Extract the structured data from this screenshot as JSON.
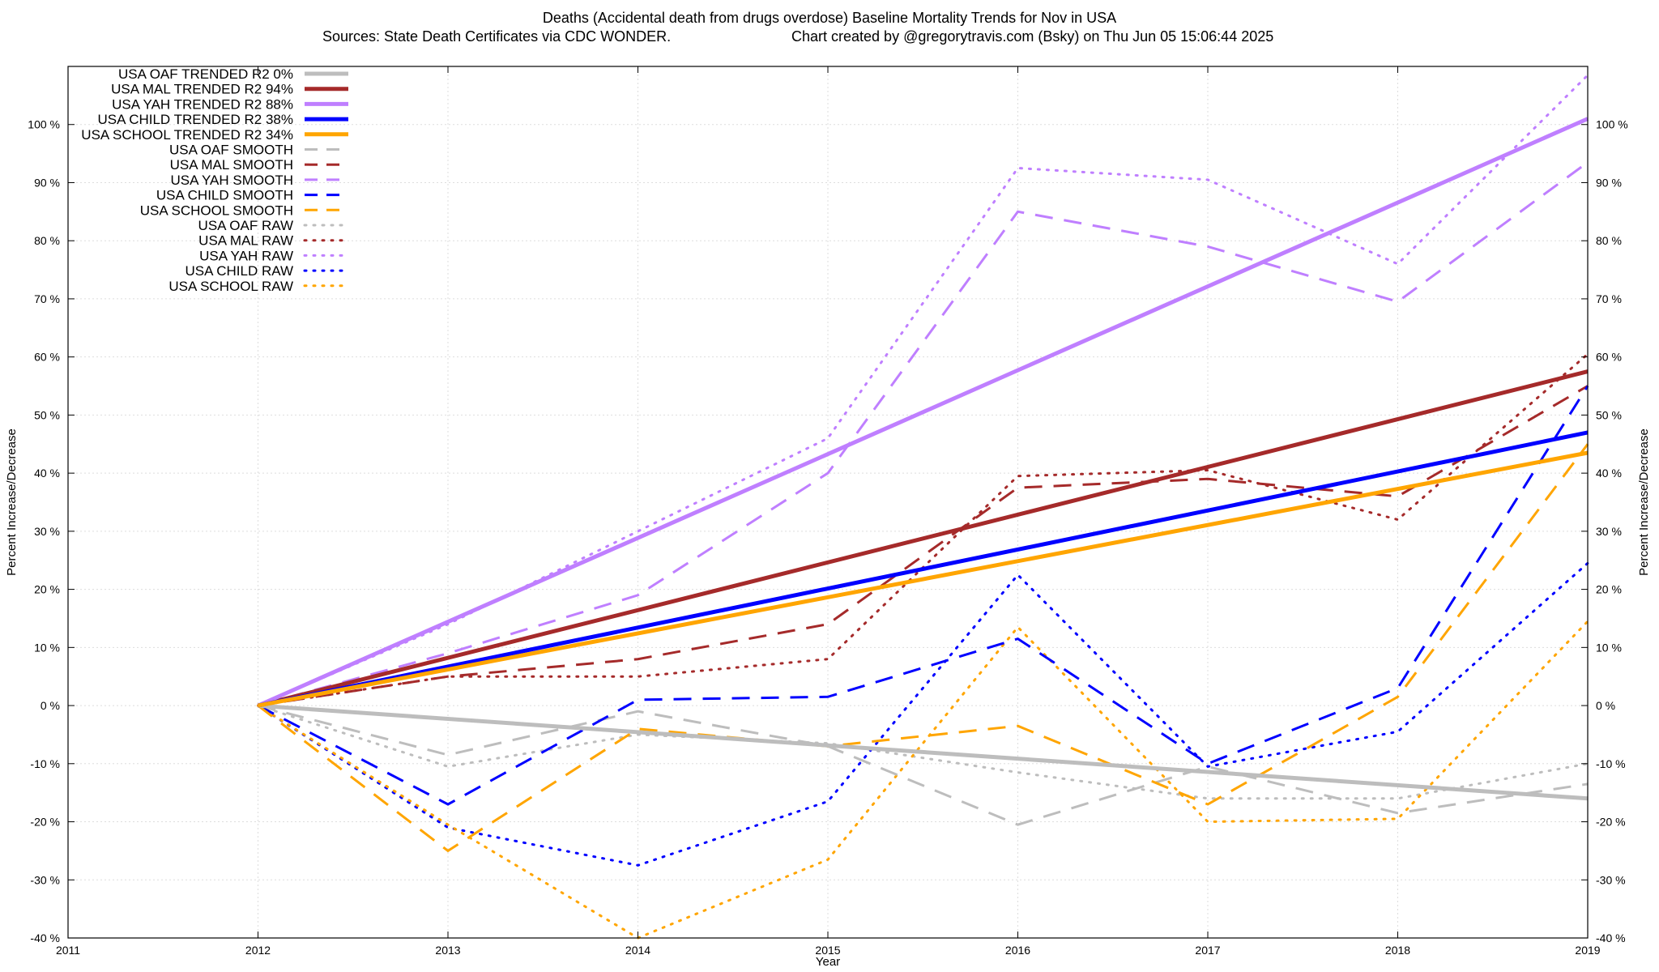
{
  "chart_data": {
    "type": "line",
    "title": "Deaths (Accidental death from drugs overdose)  Baseline Mortality Trends for Nov in USA",
    "subtitle_left": "Sources: State Death Certificates via CDC WONDER.",
    "subtitle_right": "Chart created by @gregorytravis.com (Bsky) on Thu Jun 05 15:06:44 2025",
    "xlabel": "Year",
    "ylabel_left": "Percent Increase/Decrease",
    "ylabel_right": "Percent Increase/Decrease",
    "xlim": [
      2011,
      2019
    ],
    "ylim": [
      -40,
      110
    ],
    "x_ticks": [
      2011,
      2012,
      2013,
      2014,
      2015,
      2016,
      2017,
      2018,
      2019
    ],
    "x_tick_labels": [
      "2011",
      "2012",
      "2013",
      "2014",
      "2015",
      "2016",
      "2017",
      "2018",
      "2019"
    ],
    "y_ticks": [
      -40,
      -30,
      -20,
      -10,
      0,
      10,
      20,
      30,
      40,
      50,
      60,
      70,
      80,
      90,
      100
    ],
    "y_tick_labels": [
      "-40 %",
      "-30 %",
      "-20 %",
      "-10 %",
      "0 %",
      "10 %",
      "20 %",
      "30 %",
      "40 %",
      "50 %",
      "60 %",
      "70 %",
      "80 %",
      "90 %",
      "100 %"
    ],
    "grid": true,
    "legend_position": "top-left",
    "series": [
      {
        "name": "USA OAF TRENDED R2",
        "r2": "0%",
        "style": "solid",
        "color": "#bdbdbd",
        "x": [
          2012,
          2019
        ],
        "values": [
          0,
          -16
        ]
      },
      {
        "name": "USA MAL TRENDED R2",
        "r2": "94%",
        "style": "solid",
        "color": "#a52a2a",
        "x": [
          2012,
          2019
        ],
        "values": [
          0,
          57.5
        ]
      },
      {
        "name": "USA YAH TRENDED R2",
        "r2": "88%",
        "style": "solid",
        "color": "#bf7fff",
        "x": [
          2012,
          2019
        ],
        "values": [
          0,
          101
        ]
      },
      {
        "name": "USA CHILD TRENDED R2",
        "r2": "38%",
        "style": "solid",
        "color": "#0000ff",
        "x": [
          2012,
          2019
        ],
        "values": [
          0,
          47
        ]
      },
      {
        "name": "USA SCHOOL TRENDED R2",
        "r2": "34%",
        "style": "solid",
        "color": "#ffa500",
        "x": [
          2012,
          2019
        ],
        "values": [
          0,
          43.5
        ]
      },
      {
        "name": "USA OAF SMOOTH",
        "style": "dashed",
        "color": "#bdbdbd",
        "x": [
          2012,
          2013,
          2014,
          2015,
          2016,
          2017,
          2018,
          2019
        ],
        "values": [
          0,
          -8.5,
          -1,
          -7,
          -20.5,
          -10.5,
          -18.5,
          -13.5
        ]
      },
      {
        "name": "USA MAL SMOOTH",
        "style": "dashed",
        "color": "#a52a2a",
        "x": [
          2012,
          2013,
          2014,
          2015,
          2016,
          2017,
          2018,
          2019
        ],
        "values": [
          0,
          5,
          8,
          14,
          37.5,
          39,
          36,
          55
        ]
      },
      {
        "name": "USA YAH SMOOTH",
        "style": "dashed",
        "color": "#bf7fff",
        "x": [
          2012,
          2013,
          2014,
          2015,
          2016,
          2017,
          2018,
          2019
        ],
        "values": [
          0,
          9,
          19,
          40,
          85,
          79,
          69.5,
          93.5
        ]
      },
      {
        "name": "USA CHILD SMOOTH",
        "style": "dashed",
        "color": "#0000ff",
        "x": [
          2012,
          2013,
          2014,
          2015,
          2016,
          2017,
          2018,
          2019
        ],
        "values": [
          0,
          -17,
          1,
          1.5,
          11.5,
          -10,
          3,
          55
        ]
      },
      {
        "name": "USA SCHOOL SMOOTH",
        "style": "dashed",
        "color": "#ffa500",
        "x": [
          2012,
          2013,
          2014,
          2015,
          2016,
          2017,
          2018,
          2019
        ],
        "values": [
          0,
          -25,
          -4,
          -7,
          -3.5,
          -17,
          1.5,
          45
        ]
      },
      {
        "name": "USA OAF RAW",
        "style": "dotted",
        "color": "#bdbdbd",
        "x": [
          2012,
          2013,
          2014,
          2015,
          2016,
          2017,
          2018,
          2019
        ],
        "values": [
          0,
          -10.5,
          -5,
          -6.5,
          -11.5,
          -16,
          -16,
          -10
        ]
      },
      {
        "name": "USA MAL RAW",
        "style": "dotted",
        "color": "#a52a2a",
        "x": [
          2012,
          2013,
          2014,
          2015,
          2016,
          2017,
          2018,
          2019
        ],
        "values": [
          0,
          5,
          5,
          8,
          39.5,
          40.5,
          32,
          60.5
        ]
      },
      {
        "name": "USA YAH RAW",
        "style": "dotted",
        "color": "#bf7fff",
        "x": [
          2012,
          2013,
          2014,
          2015,
          2016,
          2017,
          2018,
          2019
        ],
        "values": [
          0,
          14,
          30,
          46,
          92.5,
          90.5,
          76,
          108.5
        ]
      },
      {
        "name": "USA CHILD RAW",
        "style": "dotted",
        "color": "#0000ff",
        "x": [
          2012,
          2013,
          2014,
          2015,
          2016,
          2017,
          2018,
          2019
        ],
        "values": [
          0,
          -21,
          -27.5,
          -16.5,
          22.5,
          -10.5,
          -4.5,
          24.5
        ]
      },
      {
        "name": "USA SCHOOL RAW",
        "style": "dotted",
        "color": "#ffa500",
        "x": [
          2012,
          2013,
          2014,
          2015,
          2016,
          2017,
          2018,
          2019
        ],
        "values": [
          0,
          -20.5,
          -40,
          -26.5,
          13.5,
          -20,
          -19.5,
          14.5
        ]
      }
    ]
  }
}
